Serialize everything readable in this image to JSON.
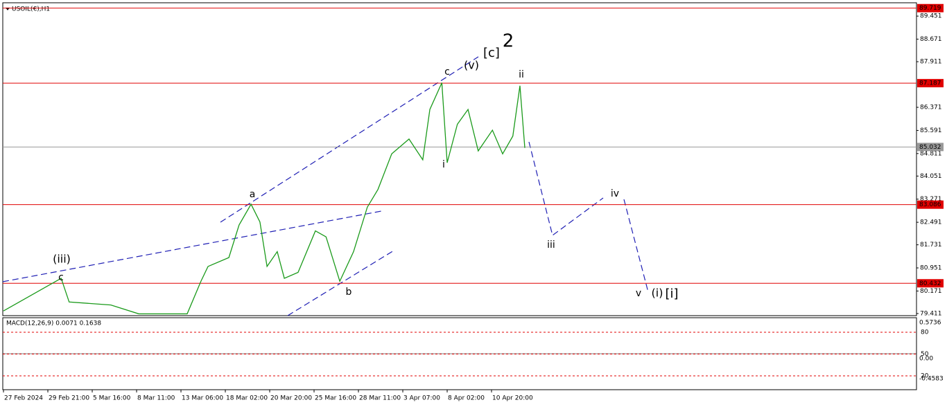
{
  "chart_data": {
    "type": "line",
    "title": "USOIL(€),H1",
    "ylim": [
      79.34,
      89.9
    ],
    "yticks": [
      89.451,
      88.671,
      87.911,
      86.371,
      85.591,
      84.811,
      84.051,
      83.271,
      82.491,
      81.731,
      80.951,
      80.171,
      79.411
    ],
    "xlim": [
      -0.016,
      20.578
    ],
    "xticks": [
      {
        "value": 0,
        "label": "27 Feb 2024"
      },
      {
        "value": 1,
        "label": "29 Feb 21:00"
      },
      {
        "value": 2,
        "label": "5 Mar 16:00"
      },
      {
        "value": 3,
        "label": "8 Mar 11:00"
      },
      {
        "value": 4,
        "label": "13 Mar 06:00"
      },
      {
        "value": 5,
        "label": "18 Mar 02:00"
      },
      {
        "value": 6,
        "label": "20 Mar 20:00"
      },
      {
        "value": 7,
        "label": "25 Mar 16:00"
      },
      {
        "value": 8,
        "label": "28 Mar 11:00"
      },
      {
        "value": 9,
        "label": "3 Apr 07:00"
      },
      {
        "value": 10,
        "label": "8 Apr 02:00"
      },
      {
        "value": 11,
        "label": "10 Apr 20:00"
      }
    ],
    "levels": [
      {
        "value": 89.719,
        "color": "#e00000"
      },
      {
        "value": 87.187,
        "color": "#e00000"
      },
      {
        "value": 85.032,
        "color": "#999999"
      },
      {
        "value": 83.086,
        "color": "#e00000"
      },
      {
        "value": 80.432,
        "color": "#e00000"
      }
    ],
    "series": [
      {
        "name": "USOIL",
        "color": "#1a9a1a",
        "x": [
          0,
          1.3,
          1.48,
          2.42,
          3.05,
          4.14,
          4.45,
          4.61,
          5.08,
          5.31,
          5.58,
          5.78,
          5.94,
          6.17,
          6.33,
          6.64,
          7.03,
          7.27,
          7.58,
          7.89,
          8.2,
          8.44,
          8.75,
          9.14,
          9.45,
          9.61,
          9.88,
          10.0,
          10.23,
          10.47,
          10.7,
          11.02,
          11.25,
          11.48,
          11.64,
          11.75
        ],
        "values": [
          79.5,
          80.6,
          79.8,
          79.7,
          79.4,
          79.4,
          80.5,
          81.0,
          81.3,
          82.4,
          83.1,
          82.5,
          81.0,
          81.5,
          80.6,
          80.8,
          82.2,
          82.0,
          80.5,
          81.5,
          83.0,
          83.6,
          84.8,
          85.3,
          84.6,
          86.3,
          87.2,
          84.5,
          85.8,
          86.3,
          84.9,
          85.6,
          84.8,
          85.4,
          87.1,
          85.0
        ]
      }
    ],
    "annotations": [
      {
        "text": "2",
        "color": "#1414d8"
      },
      {
        "text": "[c]",
        "color": "#2e8b2e"
      },
      {
        "text": "(v)",
        "color": "#1414d8"
      },
      {
        "text": "c",
        "color": "#e020e0"
      },
      {
        "text": "ii",
        "color": "#e020e0"
      },
      {
        "text": "i",
        "color": "#e020e0"
      },
      {
        "text": "a",
        "color": "#e020e0"
      },
      {
        "text": "b",
        "color": "#e020e0"
      },
      {
        "text": "(iii)",
        "color": "#1414d8"
      },
      {
        "text": "c",
        "color": "#e020e0"
      },
      {
        "text": "iv",
        "color": "#e020e0"
      },
      {
        "text": "iii",
        "color": "#e020e0"
      },
      {
        "text": "v",
        "color": "#e020e0"
      },
      {
        "text": "(i)",
        "color": "#1414d8"
      },
      {
        "text": "[i]",
        "color": "#2e8b2e"
      }
    ],
    "indicator": {
      "label": "MACD(12,26,9) 0.0071 0.1638",
      "yticks": [
        0.5736,
        {
          "value": 0,
          "label": "0.00"
        },
        -0.4583
      ],
      "levels": [
        80,
        50,
        20
      ]
    }
  }
}
